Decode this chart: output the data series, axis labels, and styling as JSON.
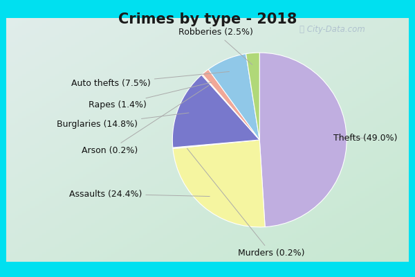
{
  "title": "Crimes by type - 2018",
  "labels": [
    "Thefts",
    "Assaults",
    "Murders",
    "Burglaries",
    "Arson",
    "Rapes",
    "Auto thefts",
    "Robberies"
  ],
  "values": [
    49.0,
    24.4,
    0.2,
    14.8,
    0.2,
    1.4,
    7.5,
    2.5
  ],
  "colors": [
    "#c0aee0",
    "#f5f5a0",
    "#e8e8c0",
    "#7878cc",
    "#f5c8a8",
    "#f0a898",
    "#90c8e8",
    "#b0d878"
  ],
  "label_texts": [
    "Thefts (49.0%)",
    "Assaults (24.4%)",
    "Murders (0.2%)",
    "Burglaries (14.8%)",
    "Arson (0.2%)",
    "Rapes (1.4%)",
    "Auto thefts (7.5%)",
    "Robberies (2.5%)"
  ],
  "border_color": "#00e0f0",
  "bg_color_topleft": "#b8ddd8",
  "bg_color_bottomright": "#d8edd0",
  "title_fontsize": 15,
  "startangle": 90,
  "label_fontsize": 9
}
